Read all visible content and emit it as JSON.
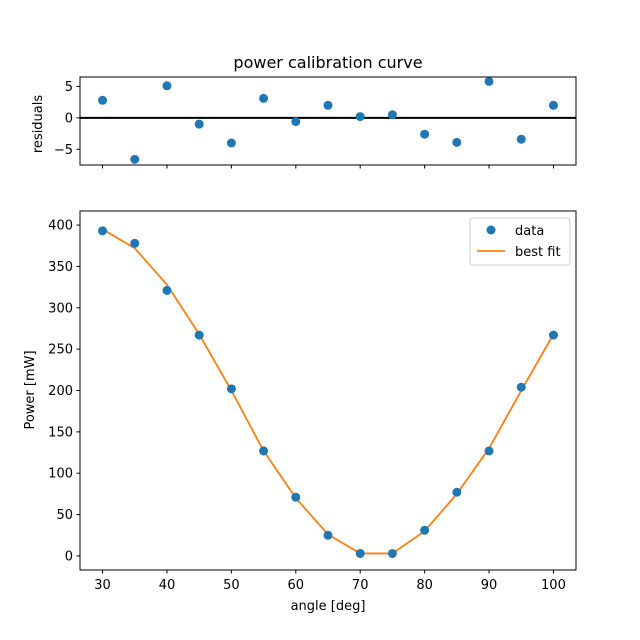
{
  "figure": {
    "title": "power calibration curve"
  },
  "chart_data": [
    {
      "type": "scatter",
      "panel": "residuals",
      "title": "power calibration curve",
      "xlabel": "",
      "ylabel": "residuals",
      "xlim": [
        26.5,
        103.5
      ],
      "ylim": [
        -7.5,
        6.5
      ],
      "yticks": [
        -5,
        0,
        5
      ],
      "xticks": [
        30,
        40,
        50,
        60,
        70,
        80,
        90,
        100
      ],
      "xticklabels_visible": false,
      "zero_line": true,
      "grid": false,
      "series": [
        {
          "color": "#1f77b4",
          "marker": "circle",
          "x": [
            30,
            35,
            40,
            45,
            50,
            55,
            60,
            65,
            70,
            75,
            80,
            85,
            90,
            95,
            100
          ],
          "y": [
            2.8,
            -6.6,
            5.1,
            -1.0,
            -4.0,
            3.1,
            -0.6,
            2.0,
            0.2,
            0.5,
            -2.6,
            -3.9,
            5.8,
            -3.4,
            2.0
          ]
        }
      ]
    },
    {
      "type": "line",
      "panel": "main",
      "title": "",
      "xlabel": "angle [deg]",
      "ylabel": "Power [mW]",
      "xlim": [
        26.5,
        103.5
      ],
      "ylim": [
        -17,
        417
      ],
      "xticks": [
        30,
        40,
        50,
        60,
        70,
        80,
        90,
        100
      ],
      "yticks": [
        0,
        50,
        100,
        150,
        200,
        250,
        300,
        350,
        400
      ],
      "grid": false,
      "legend": "top-right",
      "series": [
        {
          "name": "data",
          "style": "markers",
          "color": "#1f77b4",
          "x": [
            30,
            35,
            40,
            45,
            50,
            55,
            60,
            65,
            70,
            75,
            80,
            85,
            90,
            95,
            100
          ],
          "y": [
            393,
            378,
            321,
            267,
            202,
            127,
            71,
            25,
            3,
            3,
            31,
            77,
            127,
            204,
            267
          ]
        },
        {
          "name": "best fit",
          "style": "line",
          "color": "#ff7f0e",
          "x": [
            30,
            35,
            40,
            45,
            50,
            55,
            60,
            65,
            70,
            75,
            80,
            85,
            90,
            95,
            100
          ],
          "y": [
            395,
            372,
            328,
            268,
            200,
            127,
            70,
            26,
            3,
            3,
            30,
            75,
            130,
            200,
            268
          ]
        }
      ]
    }
  ]
}
